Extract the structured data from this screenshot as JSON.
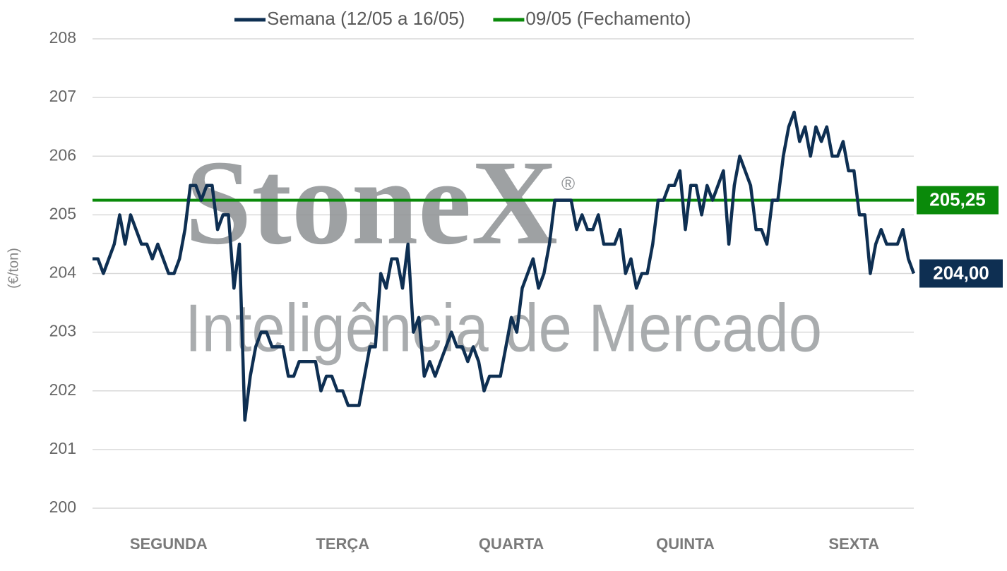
{
  "chart_data": {
    "type": "line",
    "y_label": "(€/ton)",
    "watermark": {
      "brand": "StoneX",
      "mark": "®",
      "tagline": "Inteligência de Mercado"
    },
    "categories": [
      null,
      null,
      null,
      null,
      null,
      null,
      null,
      null,
      null,
      null,
      null,
      null,
      null,
      null,
      "SEGUNDA",
      null,
      null,
      null,
      null,
      null,
      null,
      null,
      null,
      null,
      null,
      null,
      null,
      null,
      null,
      null,
      null,
      null,
      null,
      null,
      null,
      null,
      null,
      null,
      null,
      null,
      null,
      null,
      null,
      null,
      null,
      null,
      "TERÇA",
      null,
      null,
      null,
      null,
      null,
      null,
      null,
      null,
      null,
      null,
      null,
      null,
      null,
      null,
      null,
      null,
      null,
      null,
      null,
      null,
      null,
      null,
      null,
      null,
      null,
      null,
      null,
      null,
      null,
      null,
      "QUARTA",
      null,
      null,
      null,
      null,
      null,
      null,
      null,
      null,
      null,
      null,
      null,
      null,
      null,
      null,
      null,
      null,
      null,
      null,
      null,
      null,
      null,
      null,
      null,
      null,
      null,
      null,
      null,
      null,
      null,
      null,
      null,
      "QUINTA",
      null,
      null,
      null,
      null,
      null,
      null,
      null,
      null,
      null,
      null,
      null,
      null,
      null,
      null,
      null,
      null,
      null,
      null,
      null,
      null,
      null,
      null,
      null,
      null,
      null,
      null,
      null,
      null,
      null,
      null,
      "SEXTA",
      null,
      null,
      null,
      null,
      null,
      null,
      null,
      null,
      null,
      null,
      null
    ],
    "series": [
      {
        "name": "Semana (12/05 a 16/05)",
        "color": "#0e2f52",
        "end_label": "204,00",
        "values": [
          204.25,
          204.25,
          204.0,
          204.25,
          204.5,
          205.0,
          204.5,
          205.0,
          204.75,
          204.5,
          204.5,
          204.25,
          204.5,
          204.25,
          204.0,
          204.0,
          204.25,
          204.75,
          205.5,
          205.5,
          205.25,
          205.5,
          205.5,
          204.75,
          205.0,
          205.0,
          203.75,
          204.5,
          201.5,
          202.25,
          202.75,
          203.0,
          203.0,
          202.75,
          202.75,
          202.75,
          202.25,
          202.25,
          202.5,
          202.5,
          202.5,
          202.5,
          202.0,
          202.25,
          202.25,
          202.0,
          202.0,
          201.75,
          201.75,
          201.75,
          202.25,
          202.75,
          202.75,
          204.0,
          203.75,
          204.25,
          204.25,
          203.75,
          204.5,
          203.0,
          203.25,
          202.25,
          202.5,
          202.25,
          202.5,
          202.75,
          203.0,
          202.75,
          202.75,
          202.5,
          202.75,
          202.5,
          202.0,
          202.25,
          202.25,
          202.25,
          202.75,
          203.25,
          203.0,
          203.75,
          204.0,
          204.25,
          203.75,
          204.0,
          204.5,
          205.25,
          205.25,
          205.25,
          205.25,
          204.75,
          205.0,
          204.75,
          204.75,
          205.0,
          204.5,
          204.5,
          204.5,
          204.75,
          204.0,
          204.25,
          203.75,
          204.0,
          204.0,
          204.5,
          205.25,
          205.25,
          205.5,
          205.5,
          205.75,
          204.75,
          205.5,
          205.5,
          205.0,
          205.5,
          205.25,
          205.5,
          205.75,
          204.5,
          205.5,
          206.0,
          205.75,
          205.5,
          204.75,
          204.75,
          204.5,
          205.25,
          205.25,
          206.0,
          206.5,
          206.75,
          206.25,
          206.5,
          206.0,
          206.5,
          206.25,
          206.5,
          206.0,
          206.0,
          206.25,
          205.75,
          205.75,
          205.0,
          205.0,
          204.0,
          204.5,
          204.75,
          204.5,
          204.5,
          204.5,
          204.75,
          204.25,
          204.0
        ]
      }
    ],
    "reference_lines": [
      {
        "name": "09/05 (Fechamento)",
        "color": "#0a8a0a",
        "value": 205.25,
        "value_label": "205,25"
      }
    ],
    "ylim": [
      200,
      208
    ],
    "yticks": [
      200,
      201,
      202,
      203,
      204,
      205,
      206,
      207,
      208
    ],
    "grid": true
  }
}
